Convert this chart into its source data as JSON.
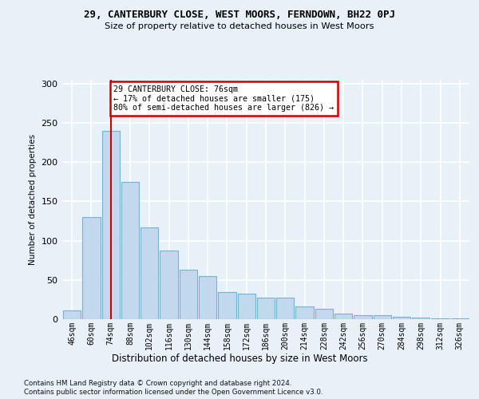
{
  "title_line1": "29, CANTERBURY CLOSE, WEST MOORS, FERNDOWN, BH22 0PJ",
  "title_line2": "Size of property relative to detached houses in West Moors",
  "xlabel": "Distribution of detached houses by size in West Moors",
  "ylabel": "Number of detached properties",
  "categories": [
    "46sqm",
    "60sqm",
    "74sqm",
    "88sqm",
    "102sqm",
    "116sqm",
    "130sqm",
    "144sqm",
    "158sqm",
    "172sqm",
    "186sqm",
    "200sqm",
    "214sqm",
    "228sqm",
    "242sqm",
    "256sqm",
    "270sqm",
    "284sqm",
    "298sqm",
    "312sqm",
    "326sqm"
  ],
  "values": [
    11,
    130,
    240,
    175,
    117,
    87,
    63,
    55,
    35,
    33,
    27,
    27,
    16,
    13,
    7,
    5,
    5,
    3,
    2,
    1,
    1
  ],
  "bar_color": "#c2d8ed",
  "bar_edge_color": "#7aafd4",
  "vline_color": "#cc0000",
  "vline_pos": 2,
  "annotation_text": "29 CANTERBURY CLOSE: 76sqm\n← 17% of detached houses are smaller (175)\n80% of semi-detached houses are larger (826) →",
  "annotation_box_facecolor": "#ffffff",
  "annotation_box_edgecolor": "#cc0000",
  "ylim": [
    0,
    305
  ],
  "yticks": [
    0,
    50,
    100,
    150,
    200,
    250,
    300
  ],
  "footnote1": "Contains HM Land Registry data © Crown copyright and database right 2024.",
  "footnote2": "Contains public sector information licensed under the Open Government Licence v3.0.",
  "bg_color": "#e8f0f8",
  "grid_color": "#ffffff"
}
